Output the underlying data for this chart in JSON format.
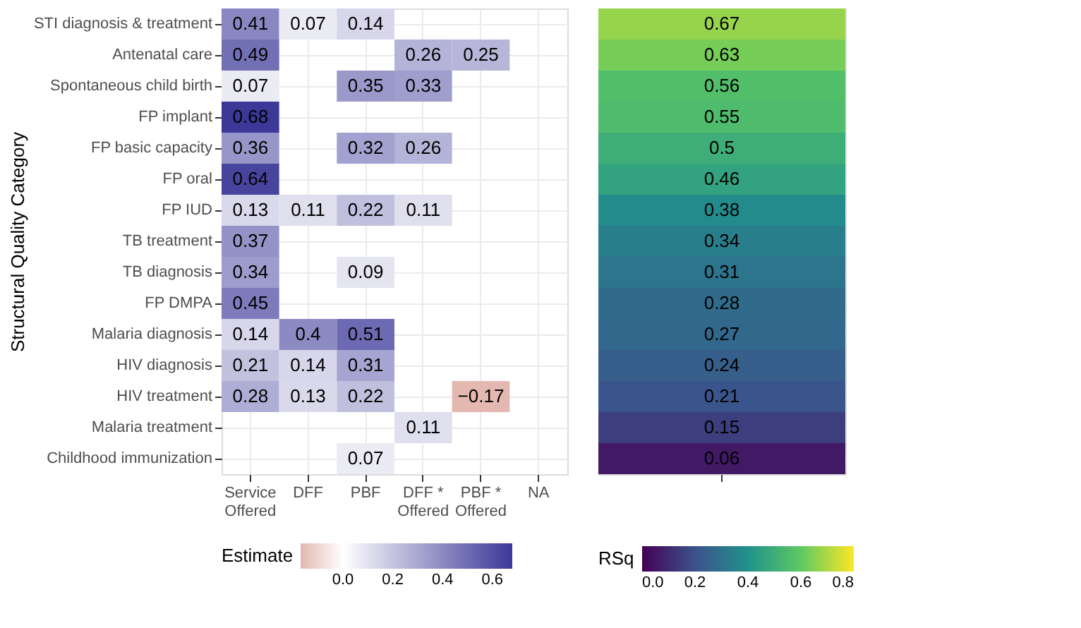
{
  "chart_data": [
    {
      "type": "heatmap",
      "ylabel": "Structural Quality Category",
      "clabel": "Estimate",
      "categories": [
        "Service\nOffered",
        "DFF",
        "PBF",
        "DFF *\nOffered",
        "PBF *\nOffered",
        "NA"
      ],
      "y_categories": [
        "STI diagnosis & treatment",
        "Antenatal care",
        "Spontaneous child birth",
        "FP implant",
        "FP basic capacity",
        "FP oral",
        "FP IUD",
        "TB treatment",
        "TB diagnosis",
        "FP DMPA",
        "Malaria diagnosis",
        "HIV diagnosis",
        "HIV treatment",
        "Malaria treatment",
        "Childhood immunization"
      ],
      "cells": [
        [
          0.41,
          0.07,
          0.14,
          null,
          null,
          null
        ],
        [
          0.49,
          null,
          null,
          0.26,
          0.25,
          null
        ],
        [
          0.07,
          null,
          0.35,
          0.33,
          null,
          null
        ],
        [
          0.68,
          null,
          null,
          null,
          null,
          null
        ],
        [
          0.36,
          null,
          0.32,
          0.26,
          null,
          null
        ],
        [
          0.64,
          null,
          null,
          null,
          null,
          null
        ],
        [
          0.13,
          0.11,
          0.22,
          0.11,
          null,
          null
        ],
        [
          0.37,
          null,
          null,
          null,
          null,
          null
        ],
        [
          0.34,
          null,
          0.09,
          null,
          null,
          null
        ],
        [
          0.45,
          null,
          null,
          null,
          null,
          null
        ],
        [
          0.14,
          0.4,
          0.51,
          null,
          null,
          null
        ],
        [
          0.21,
          0.14,
          0.31,
          null,
          null,
          null
        ],
        [
          0.28,
          0.13,
          0.22,
          null,
          -0.17,
          null
        ],
        [
          null,
          null,
          null,
          0.11,
          null,
          null
        ],
        [
          null,
          null,
          0.07,
          null,
          null,
          null
        ]
      ],
      "clim": [
        -0.17,
        0.68
      ],
      "cticks": [
        {
          "value": 0,
          "label": "0.0"
        },
        0.2,
        0.4,
        0.6
      ],
      "colors": [
        "#e3b8b0",
        "#ffffff",
        "#3b3898"
      ],
      "data_labels": true,
      "grid": true
    },
    {
      "type": "heatmap",
      "clabel": "RSq",
      "categories": [
        null
      ],
      "y_categories": [
        null,
        null,
        null,
        null,
        null,
        null,
        null,
        null,
        null,
        null,
        null,
        null,
        null,
        null,
        null
      ],
      "cells": [
        [
          0.67
        ],
        [
          0.63
        ],
        [
          0.56
        ],
        [
          0.55
        ],
        [
          0.5
        ],
        [
          0.46
        ],
        [
          0.38
        ],
        [
          0.34
        ],
        [
          0.31
        ],
        [
          0.28
        ],
        [
          0.27
        ],
        [
          0.24
        ],
        [
          0.21
        ],
        [
          0.15
        ],
        [
          0.06
        ]
      ],
      "clim": [
        0.0,
        0.8
      ],
      "cticks": [
        {
          "value": 0,
          "label": "0.0"
        },
        0.2,
        0.4,
        0.6,
        0.8
      ],
      "colors": [
        "#440154",
        "#3b528b",
        "#21918c",
        "#5ec962",
        "#fde725"
      ],
      "data_labels": true,
      "grid": true,
      "tick_labels": false
    }
  ]
}
